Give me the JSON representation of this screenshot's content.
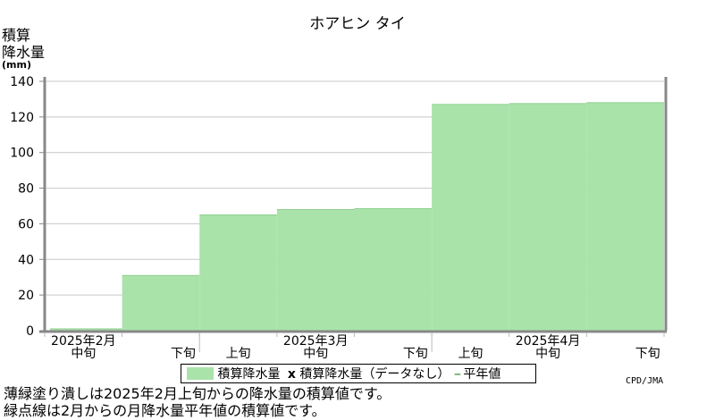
{
  "title": "ホアヒン タイ",
  "y_axis": {
    "line1": "積算",
    "line2": "降水量",
    "unit": "(mm)"
  },
  "legend": {
    "series_label": "積算降水量",
    "missing_mark": "x",
    "missing_label": "積算降水量（データなし）",
    "normal_mark": "--",
    "normal_label": "平年値"
  },
  "credit": "CPD/JMA",
  "notes": [
    "薄緑塗り潰しは2025年2月上旬からの降水量の積算値です。",
    "緑点線は2月からの月降水量平年値の積算値です。"
  ],
  "colors": {
    "fill": "#aae3aa",
    "grid": "#c8c8c8"
  },
  "chart_data": {
    "type": "area",
    "ylim": [
      0,
      140
    ],
    "yticks": [
      0,
      20,
      40,
      60,
      80,
      100,
      120,
      140
    ],
    "grid": true,
    "dekads": [
      "中旬",
      "下旬",
      "上旬",
      "中旬",
      "下旬",
      "上旬",
      "中旬",
      "下旬"
    ],
    "months": [
      {
        "label": "2025年2月",
        "center_dekad": 0
      },
      {
        "label": "2025年3月",
        "center_dekad": 3
      },
      {
        "label": "2025年4月",
        "center_dekad": 6
      }
    ],
    "month_boundaries": [
      2,
      5
    ],
    "series": [
      {
        "name": "積算降水量",
        "values": [
          1,
          31,
          65,
          68,
          68.5,
          127,
          127.5,
          128
        ]
      }
    ]
  }
}
